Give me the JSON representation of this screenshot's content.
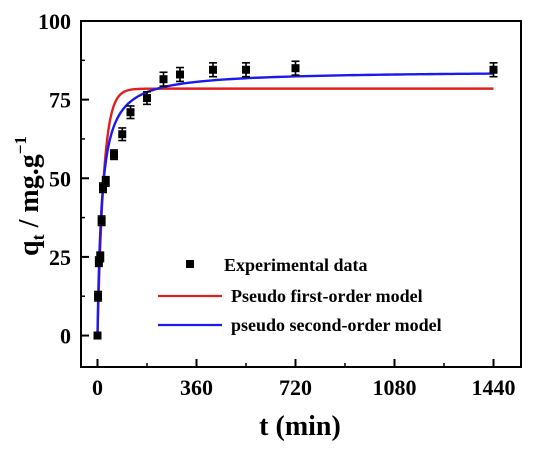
{
  "chart_data": {
    "type": "scatter",
    "xlabel_main": "t (min)",
    "ylabel": {
      "q": "q",
      "sub": "t",
      "rest": " / mg.g",
      "sup": "−1"
    },
    "xlim": [
      -60,
      1540
    ],
    "ylim": [
      -10,
      100
    ],
    "xticks": [
      0,
      360,
      720,
      1080,
      1440
    ],
    "yticks": [
      0,
      25,
      50,
      75,
      100
    ],
    "colors": {
      "experimental": "#000000",
      "first_order": "#e02020",
      "second_order": "#1a1aee",
      "axis": "#000000"
    },
    "series": [
      {
        "name": "Experimental data",
        "kind": "points-with-error",
        "x": [
          0,
          2,
          5,
          10,
          15,
          20,
          30,
          60,
          90,
          120,
          180,
          240,
          300,
          420,
          540,
          720,
          1440
        ],
        "y": [
          0,
          12.5,
          23.5,
          25,
          36.5,
          47,
          49,
          57.5,
          64,
          71,
          75.5,
          81.5,
          83,
          84.5,
          84.5,
          85,
          84.5
        ],
        "err": [
          0.8,
          1.5,
          1.5,
          1.5,
          1.5,
          1.5,
          1.5,
          1.5,
          2,
          2,
          2,
          2.2,
          2.2,
          2.2,
          2.2,
          2.2,
          2.2
        ]
      },
      {
        "name": "Pseudo first-order model",
        "kind": "curve",
        "model": "first-order",
        "qe": 78.5,
        "k1": 0.045
      },
      {
        "name": "pseudo second-order model",
        "kind": "curve",
        "model": "second-order",
        "qe": 84.2,
        "k2": 0.00075
      }
    ],
    "legend_position": "center-right"
  }
}
